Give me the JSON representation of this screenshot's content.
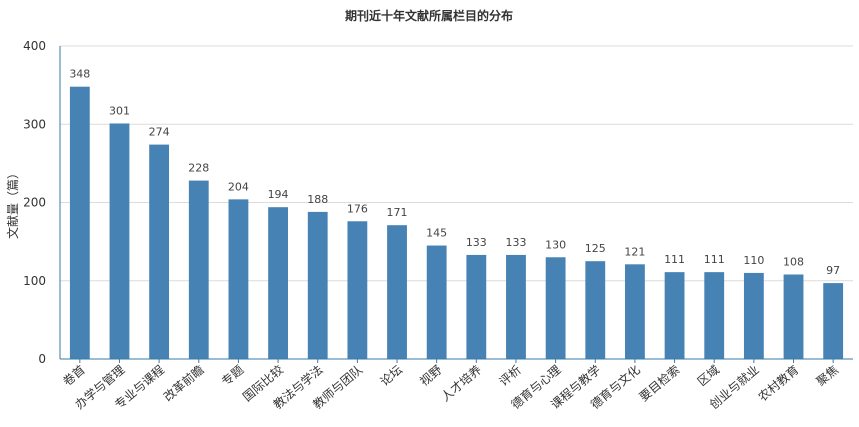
{
  "chart_data": {
    "type": "bar",
    "title": "期刊近十年文献所属栏目的分布",
    "xlabel": "",
    "ylabel": "文献量（篇）",
    "ylim": [
      0,
      400
    ],
    "yticks": [
      0,
      100,
      200,
      300,
      400
    ],
    "grid": true,
    "bar_color": "#4682b4",
    "categories": [
      "卷首",
      "办学与管理",
      "专业与课程",
      "改革前瞻",
      "专题",
      "国际比较",
      "教法与学法",
      "教师与团队",
      "论坛",
      "视野",
      "人才培养",
      "评析",
      "德育与心理",
      "课程与教学",
      "德育与文化",
      "要目检索",
      "区域",
      "创业与就业",
      "农村教育",
      "聚焦"
    ],
    "values": [
      348,
      301,
      274,
      228,
      204,
      194,
      188,
      176,
      171,
      145,
      133,
      133,
      130,
      125,
      121,
      111,
      111,
      110,
      108,
      97
    ]
  }
}
